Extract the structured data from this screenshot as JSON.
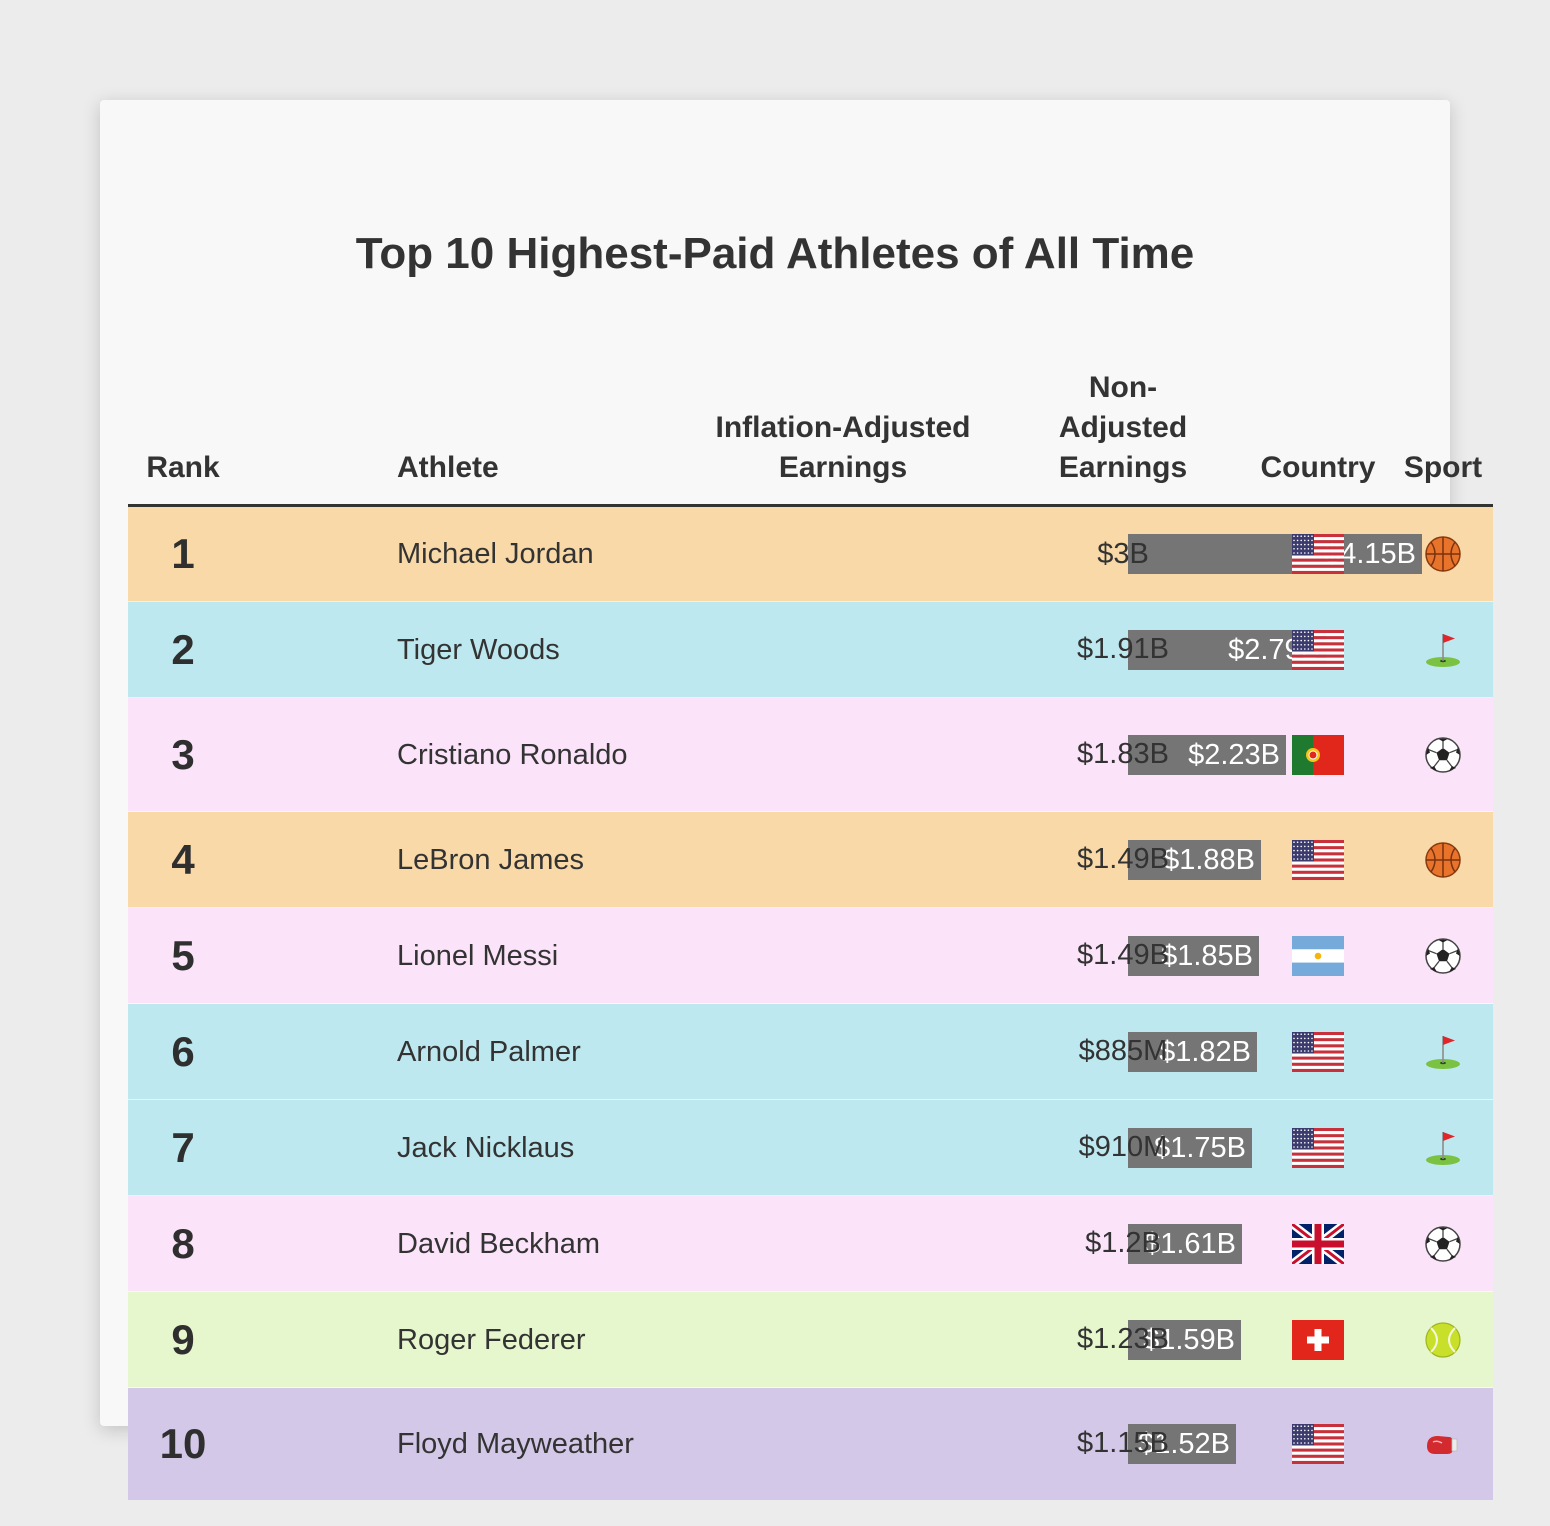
{
  "chart_data": {
    "type": "table",
    "title": "Top 10 Highest-Paid Athletes of All Time",
    "columns": [
      "Rank",
      "Athlete",
      "Inflation-Adjusted Earnings",
      "Non-Adjusted Earnings",
      "Country",
      "Sport"
    ],
    "rows": [
      {
        "rank": "1",
        "athlete": "Michael Jordan",
        "inflation_adjusted": 4.15,
        "inflation_adjusted_label": "$4.15B",
        "non_adjusted": "$3B",
        "country_icon": "usa-flag-icon",
        "sport_icon": "basketball-icon",
        "color": "#f8d9a7"
      },
      {
        "rank": "2",
        "athlete": "Tiger Woods",
        "inflation_adjusted": 2.79,
        "inflation_adjusted_label": "$2.79B",
        "non_adjusted": "$1.91B",
        "country_icon": "usa-flag-icon",
        "sport_icon": "golf-flag-icon",
        "color": "#bde8ef"
      },
      {
        "rank": "3",
        "athlete": "Cristiano Ronaldo",
        "inflation_adjusted": 2.23,
        "inflation_adjusted_label": "$2.23B",
        "non_adjusted": "$1.83B",
        "country_icon": "portugal-flag-icon",
        "sport_icon": "soccer-ball-icon",
        "color": "#fbe3f9"
      },
      {
        "rank": "4",
        "athlete": "LeBron James",
        "inflation_adjusted": 1.88,
        "inflation_adjusted_label": "$1.88B",
        "non_adjusted": "$1.49B",
        "country_icon": "usa-flag-icon",
        "sport_icon": "basketball-icon",
        "color": "#f8d9a7"
      },
      {
        "rank": "5",
        "athlete": "Lionel Messi",
        "inflation_adjusted": 1.85,
        "inflation_adjusted_label": "$1.85B",
        "non_adjusted": "$1.49B",
        "country_icon": "argentina-flag-icon",
        "sport_icon": "soccer-ball-icon",
        "color": "#fbe3f9"
      },
      {
        "rank": "6",
        "athlete": "Arnold Palmer",
        "inflation_adjusted": 1.82,
        "inflation_adjusted_label": "$1.82B",
        "non_adjusted": "$885M",
        "country_icon": "usa-flag-icon",
        "sport_icon": "golf-flag-icon",
        "color": "#bde8ef"
      },
      {
        "rank": "7",
        "athlete": "Jack Nicklaus",
        "inflation_adjusted": 1.75,
        "inflation_adjusted_label": "$1.75B",
        "non_adjusted": "$910M",
        "country_icon": "usa-flag-icon",
        "sport_icon": "golf-flag-icon",
        "color": "#bde8ef"
      },
      {
        "rank": "8",
        "athlete": "David Beckham",
        "inflation_adjusted": 1.61,
        "inflation_adjusted_label": "$1.61B",
        "non_adjusted": "$1.2B",
        "country_icon": "uk-flag-icon",
        "sport_icon": "soccer-ball-icon",
        "color": "#fbe3f9"
      },
      {
        "rank": "9",
        "athlete": "Roger Federer",
        "inflation_adjusted": 1.59,
        "inflation_adjusted_label": "$1.59B",
        "non_adjusted": "$1.23B",
        "country_icon": "switzerland-flag-icon",
        "sport_icon": "tennis-ball-icon",
        "color": "#e7f7cd"
      },
      {
        "rank": "10",
        "athlete": "Floyd Mayweather",
        "inflation_adjusted": 1.52,
        "inflation_adjusted_label": "$1.52B",
        "non_adjusted": "$1.15B",
        "country_icon": "usa-flag-icon",
        "sport_icon": "boxing-glove-icon",
        "color": "#d4c8e8"
      }
    ],
    "bar_color": "#757575",
    "header_rule_color": "#333333"
  },
  "headers": {
    "rank": "Rank",
    "athlete": "Athlete",
    "inflation": [
      "Inflation-Adjusted",
      "Earnings"
    ],
    "non_adjusted": [
      "Non-",
      "Adjusted",
      "Earnings"
    ],
    "country": "Country",
    "sport": "Sport"
  }
}
